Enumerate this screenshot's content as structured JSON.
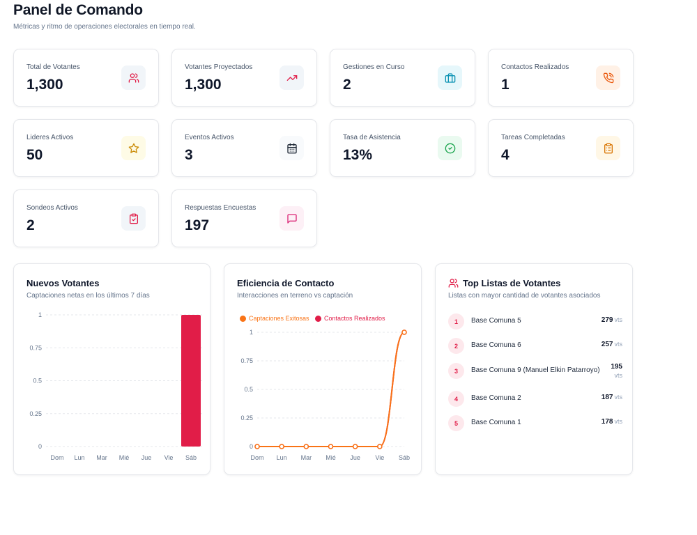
{
  "header": {
    "title": "Panel de Comando",
    "subtitle": "Métricas y ritmo de operaciones electorales en tiempo real."
  },
  "stats": [
    {
      "label": "Total de Votantes",
      "value": "1,300",
      "icon": "users-icon",
      "color": "#e11d48",
      "bg": "#f1f5f9"
    },
    {
      "label": "Votantes Proyectados",
      "value": "1,300",
      "icon": "trending-up-icon",
      "color": "#e11d48",
      "bg": "#f1f5f9"
    },
    {
      "label": "Gestiones en Curso",
      "value": "2",
      "icon": "briefcase-icon",
      "color": "#0891b2",
      "bg": "#e6f7fb"
    },
    {
      "label": "Contactos Realizados",
      "value": "1",
      "icon": "phone-call-icon",
      "color": "#ea580c",
      "bg": "#fff1e6"
    },
    {
      "label": "Lideres Activos",
      "value": "50",
      "icon": "star-icon",
      "color": "#ca8a04",
      "bg": "#fefbe6"
    },
    {
      "label": "Eventos Activos",
      "value": "3",
      "icon": "calendar-icon",
      "color": "#1f2937",
      "bg": "#f8fafc"
    },
    {
      "label": "Tasa de Asistencia",
      "value": "13%",
      "icon": "check-circle-icon",
      "color": "#16a34a",
      "bg": "#eafaf0"
    },
    {
      "label": "Tareas Completadas",
      "value": "4",
      "icon": "clipboard-list-icon",
      "color": "#d97706",
      "bg": "#fff7e6"
    },
    {
      "label": "Sondeos Activos",
      "value": "2",
      "icon": "clipboard-check-icon",
      "color": "#e11d48",
      "bg": "#f1f5f9"
    },
    {
      "label": "Respuestas Encuestas",
      "value": "197",
      "icon": "message-square-icon",
      "color": "#db2777",
      "bg": "#fdf0f6"
    }
  ],
  "new_voters": {
    "title": "Nuevos Votantes",
    "subtitle": "Captaciones netas en los últimos 7 días"
  },
  "contact_efficiency": {
    "title": "Eficiencia de Contacto",
    "subtitle": "Interacciones en terreno vs captación"
  },
  "top_lists": {
    "title": "Top Listas de Votantes",
    "subtitle": "Listas con mayor cantidad de votantes asociados",
    "unit": "vts",
    "items": [
      {
        "rank": "1",
        "name": "Base Comuna 5",
        "count": "279"
      },
      {
        "rank": "2",
        "name": "Base Comuna 6",
        "count": "257"
      },
      {
        "rank": "3",
        "name": "Base Comuna 9 (Manuel Elkin Patarroyo)",
        "count": "195"
      },
      {
        "rank": "4",
        "name": "Base Comuna 2",
        "count": "187"
      },
      {
        "rank": "5",
        "name": "Base Comuna 1",
        "count": "178"
      }
    ]
  },
  "chart_data": [
    {
      "type": "bar",
      "title": "Nuevos Votantes",
      "subtitle": "Captaciones netas en los últimos 7 días",
      "categories": [
        "Dom",
        "Lun",
        "Mar",
        "Mié",
        "Jue",
        "Vie",
        "Sáb"
      ],
      "values": [
        0,
        0,
        0,
        0,
        0,
        0,
        1
      ],
      "ylim": [
        0,
        1
      ],
      "yticks": [
        "0",
        "0.25",
        "0.5",
        "0.75",
        "1"
      ],
      "grid": true,
      "color": "#e11d48"
    },
    {
      "type": "line",
      "title": "Eficiencia de Contacto",
      "subtitle": "Interacciones en terreno vs captación",
      "categories": [
        "Dom",
        "Lun",
        "Mar",
        "Mié",
        "Jue",
        "Vie",
        "Sáb"
      ],
      "ylim": [
        0,
        1
      ],
      "yticks": [
        "0",
        "0.25",
        "0.5",
        "0.75",
        "1"
      ],
      "grid": true,
      "legend": "top-left",
      "series": [
        {
          "name": "Captaciones Exitosas",
          "values": [
            0,
            0,
            0,
            0,
            0,
            0,
            1
          ],
          "color": "#f97316"
        },
        {
          "name": "Contactos Realizados",
          "values": [
            0,
            0,
            0,
            0,
            0,
            0,
            1
          ],
          "color": "#e11d48"
        }
      ]
    }
  ]
}
